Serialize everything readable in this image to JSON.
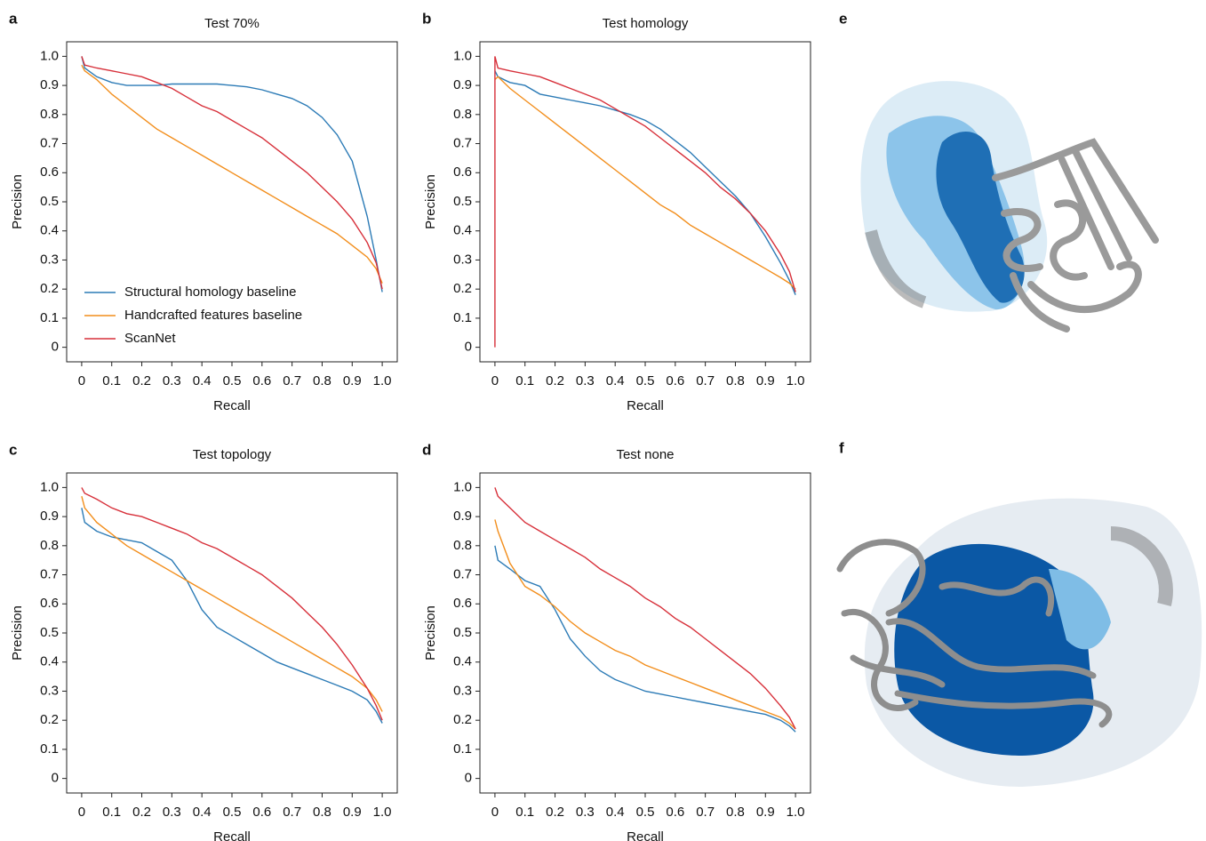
{
  "chart_data": [
    {
      "type": "line",
      "label": "a",
      "title": "Test 70%",
      "xlabel": "Recall",
      "ylabel": "Precision",
      "xlim": [
        -0.05,
        1.05
      ],
      "ylim": [
        -0.05,
        1.05
      ],
      "grid": false,
      "legend": "lower left",
      "xticks": [
        0,
        0.1,
        0.2,
        0.3,
        0.4,
        0.5,
        0.6,
        0.7,
        0.8,
        0.9,
        {
          "value": 1,
          "label": "1.0"
        }
      ],
      "yticks": [
        0,
        0.1,
        0.2,
        0.3,
        0.4,
        0.5,
        0.6,
        0.7,
        0.8,
        0.9,
        {
          "value": 1,
          "label": "1.0"
        }
      ],
      "x": [
        0,
        0.01,
        0.05,
        0.1,
        0.15,
        0.2,
        0.25,
        0.3,
        0.35,
        0.4,
        0.45,
        0.5,
        0.55,
        0.6,
        0.65,
        0.7,
        0.75,
        0.8,
        0.85,
        0.9,
        0.95,
        0.98,
        1.0
      ],
      "series": [
        {
          "name": "Structural homology baseline",
          "color": "#2c7bb6",
          "values": [
            1.0,
            0.96,
            0.93,
            0.91,
            0.9,
            0.9,
            0.9,
            0.905,
            0.905,
            0.905,
            0.905,
            0.9,
            0.895,
            0.885,
            0.87,
            0.855,
            0.83,
            0.79,
            0.73,
            0.64,
            0.45,
            0.3,
            0.19
          ]
        },
        {
          "name": "Handcrafted features baseline",
          "color": "#f28e1c",
          "values": [
            0.97,
            0.95,
            0.92,
            0.87,
            0.83,
            0.79,
            0.75,
            0.72,
            0.69,
            0.66,
            0.63,
            0.6,
            0.57,
            0.54,
            0.51,
            0.48,
            0.45,
            0.42,
            0.39,
            0.35,
            0.31,
            0.27,
            0.22
          ]
        },
        {
          "name": "ScanNet",
          "color": "#d7303a",
          "values": [
            1.0,
            0.97,
            0.96,
            0.95,
            0.94,
            0.93,
            0.91,
            0.89,
            0.86,
            0.83,
            0.81,
            0.78,
            0.75,
            0.72,
            0.68,
            0.64,
            0.6,
            0.55,
            0.5,
            0.44,
            0.36,
            0.29,
            0.2
          ]
        }
      ]
    },
    {
      "type": "line",
      "label": "b",
      "title": "Test homology",
      "xlabel": "Recall",
      "ylabel": "Precision",
      "xlim": [
        -0.05,
        1.05
      ],
      "ylim": [
        -0.05,
        1.05
      ],
      "grid": false,
      "xticks": [
        0,
        0.1,
        0.2,
        0.3,
        0.4,
        0.5,
        0.6,
        0.7,
        0.8,
        0.9,
        {
          "value": 1,
          "label": "1.0"
        }
      ],
      "yticks": [
        0,
        0.1,
        0.2,
        0.3,
        0.4,
        0.5,
        0.6,
        0.7,
        0.8,
        0.9,
        {
          "value": 1,
          "label": "1.0"
        }
      ],
      "x": [
        0,
        0,
        0.01,
        0.05,
        0.1,
        0.15,
        0.2,
        0.25,
        0.3,
        0.35,
        0.4,
        0.45,
        0.5,
        0.55,
        0.6,
        0.65,
        0.7,
        0.75,
        0.8,
        0.85,
        0.9,
        0.95,
        0.98,
        1.0
      ],
      "series": [
        {
          "color": "#2c7bb6",
          "values": [
            0.95,
            0.95,
            0.93,
            0.91,
            0.9,
            0.87,
            0.86,
            0.85,
            0.84,
            0.83,
            0.815,
            0.8,
            0.78,
            0.75,
            0.71,
            0.67,
            0.62,
            0.57,
            0.52,
            0.46,
            0.38,
            0.29,
            0.23,
            0.18
          ]
        },
        {
          "color": "#f28e1c",
          "values": [
            0.92,
            0.92,
            0.93,
            0.89,
            0.85,
            0.81,
            0.77,
            0.73,
            0.69,
            0.65,
            0.61,
            0.57,
            0.53,
            0.49,
            0.46,
            0.42,
            0.39,
            0.36,
            0.33,
            0.3,
            0.27,
            0.24,
            0.22,
            0.2
          ]
        },
        {
          "color": "#d7303a",
          "values": [
            0,
            1.0,
            0.96,
            0.95,
            0.94,
            0.93,
            0.91,
            0.89,
            0.87,
            0.85,
            0.82,
            0.79,
            0.76,
            0.72,
            0.68,
            0.64,
            0.6,
            0.55,
            0.51,
            0.46,
            0.4,
            0.32,
            0.26,
            0.19
          ]
        }
      ]
    },
    {
      "type": "line",
      "label": "c",
      "title": "Test topology",
      "xlabel": "Recall",
      "ylabel": "Precision",
      "xlim": [
        -0.05,
        1.05
      ],
      "ylim": [
        -0.05,
        1.05
      ],
      "grid": false,
      "xticks": [
        0,
        0.1,
        0.2,
        0.3,
        0.4,
        0.5,
        0.6,
        0.7,
        0.8,
        0.9,
        {
          "value": 1,
          "label": "1.0"
        }
      ],
      "yticks": [
        0,
        0.1,
        0.2,
        0.3,
        0.4,
        0.5,
        0.6,
        0.7,
        0.8,
        0.9,
        {
          "value": 1,
          "label": "1.0"
        }
      ],
      "x": [
        0,
        0.01,
        0.05,
        0.1,
        0.15,
        0.2,
        0.25,
        0.3,
        0.35,
        0.4,
        0.45,
        0.5,
        0.55,
        0.6,
        0.65,
        0.7,
        0.75,
        0.8,
        0.85,
        0.9,
        0.95,
        0.98,
        1.0
      ],
      "series": [
        {
          "color": "#2c7bb6",
          "values": [
            0.93,
            0.88,
            0.85,
            0.83,
            0.82,
            0.81,
            0.78,
            0.75,
            0.68,
            0.58,
            0.52,
            0.49,
            0.46,
            0.43,
            0.4,
            0.38,
            0.36,
            0.34,
            0.32,
            0.3,
            0.27,
            0.23,
            0.19
          ]
        },
        {
          "color": "#f28e1c",
          "values": [
            0.97,
            0.93,
            0.88,
            0.84,
            0.8,
            0.77,
            0.74,
            0.71,
            0.68,
            0.65,
            0.62,
            0.59,
            0.56,
            0.53,
            0.5,
            0.47,
            0.44,
            0.41,
            0.38,
            0.35,
            0.31,
            0.27,
            0.23
          ]
        },
        {
          "color": "#d7303a",
          "values": [
            1.0,
            0.98,
            0.96,
            0.93,
            0.91,
            0.9,
            0.88,
            0.86,
            0.84,
            0.81,
            0.79,
            0.76,
            0.73,
            0.7,
            0.66,
            0.62,
            0.57,
            0.52,
            0.46,
            0.39,
            0.31,
            0.25,
            0.2
          ]
        }
      ]
    },
    {
      "type": "line",
      "label": "d",
      "title": "Test none",
      "xlabel": "Recall",
      "ylabel": "Precision",
      "xlim": [
        -0.05,
        1.05
      ],
      "ylim": [
        -0.05,
        1.05
      ],
      "grid": false,
      "xticks": [
        0,
        0.1,
        0.2,
        0.3,
        0.4,
        0.5,
        0.6,
        0.7,
        0.8,
        0.9,
        {
          "value": 1,
          "label": "1.0"
        }
      ],
      "yticks": [
        0,
        0.1,
        0.2,
        0.3,
        0.4,
        0.5,
        0.6,
        0.7,
        0.8,
        0.9,
        {
          "value": 1,
          "label": "1.0"
        }
      ],
      "x": [
        0,
        0.01,
        0.05,
        0.1,
        0.15,
        0.2,
        0.25,
        0.3,
        0.35,
        0.4,
        0.45,
        0.5,
        0.55,
        0.6,
        0.65,
        0.7,
        0.75,
        0.8,
        0.85,
        0.9,
        0.95,
        0.98,
        1.0
      ],
      "series": [
        {
          "color": "#2c7bb6",
          "values": [
            0.8,
            0.75,
            0.72,
            0.68,
            0.66,
            0.58,
            0.48,
            0.42,
            0.37,
            0.34,
            0.32,
            0.3,
            0.29,
            0.28,
            0.27,
            0.26,
            0.25,
            0.24,
            0.23,
            0.22,
            0.2,
            0.18,
            0.16
          ]
        },
        {
          "color": "#f28e1c",
          "values": [
            0.89,
            0.85,
            0.74,
            0.66,
            0.63,
            0.59,
            0.54,
            0.5,
            0.47,
            0.44,
            0.42,
            0.39,
            0.37,
            0.35,
            0.33,
            0.31,
            0.29,
            0.27,
            0.25,
            0.23,
            0.21,
            0.19,
            0.17
          ]
        },
        {
          "color": "#d7303a",
          "values": [
            1.0,
            0.97,
            0.93,
            0.88,
            0.85,
            0.82,
            0.79,
            0.76,
            0.72,
            0.69,
            0.66,
            0.62,
            0.59,
            0.55,
            0.52,
            0.48,
            0.44,
            0.4,
            0.36,
            0.31,
            0.25,
            0.21,
            0.17
          ]
        }
      ]
    }
  ],
  "images": [
    {
      "label": "e"
    },
    {
      "label": "f"
    }
  ]
}
